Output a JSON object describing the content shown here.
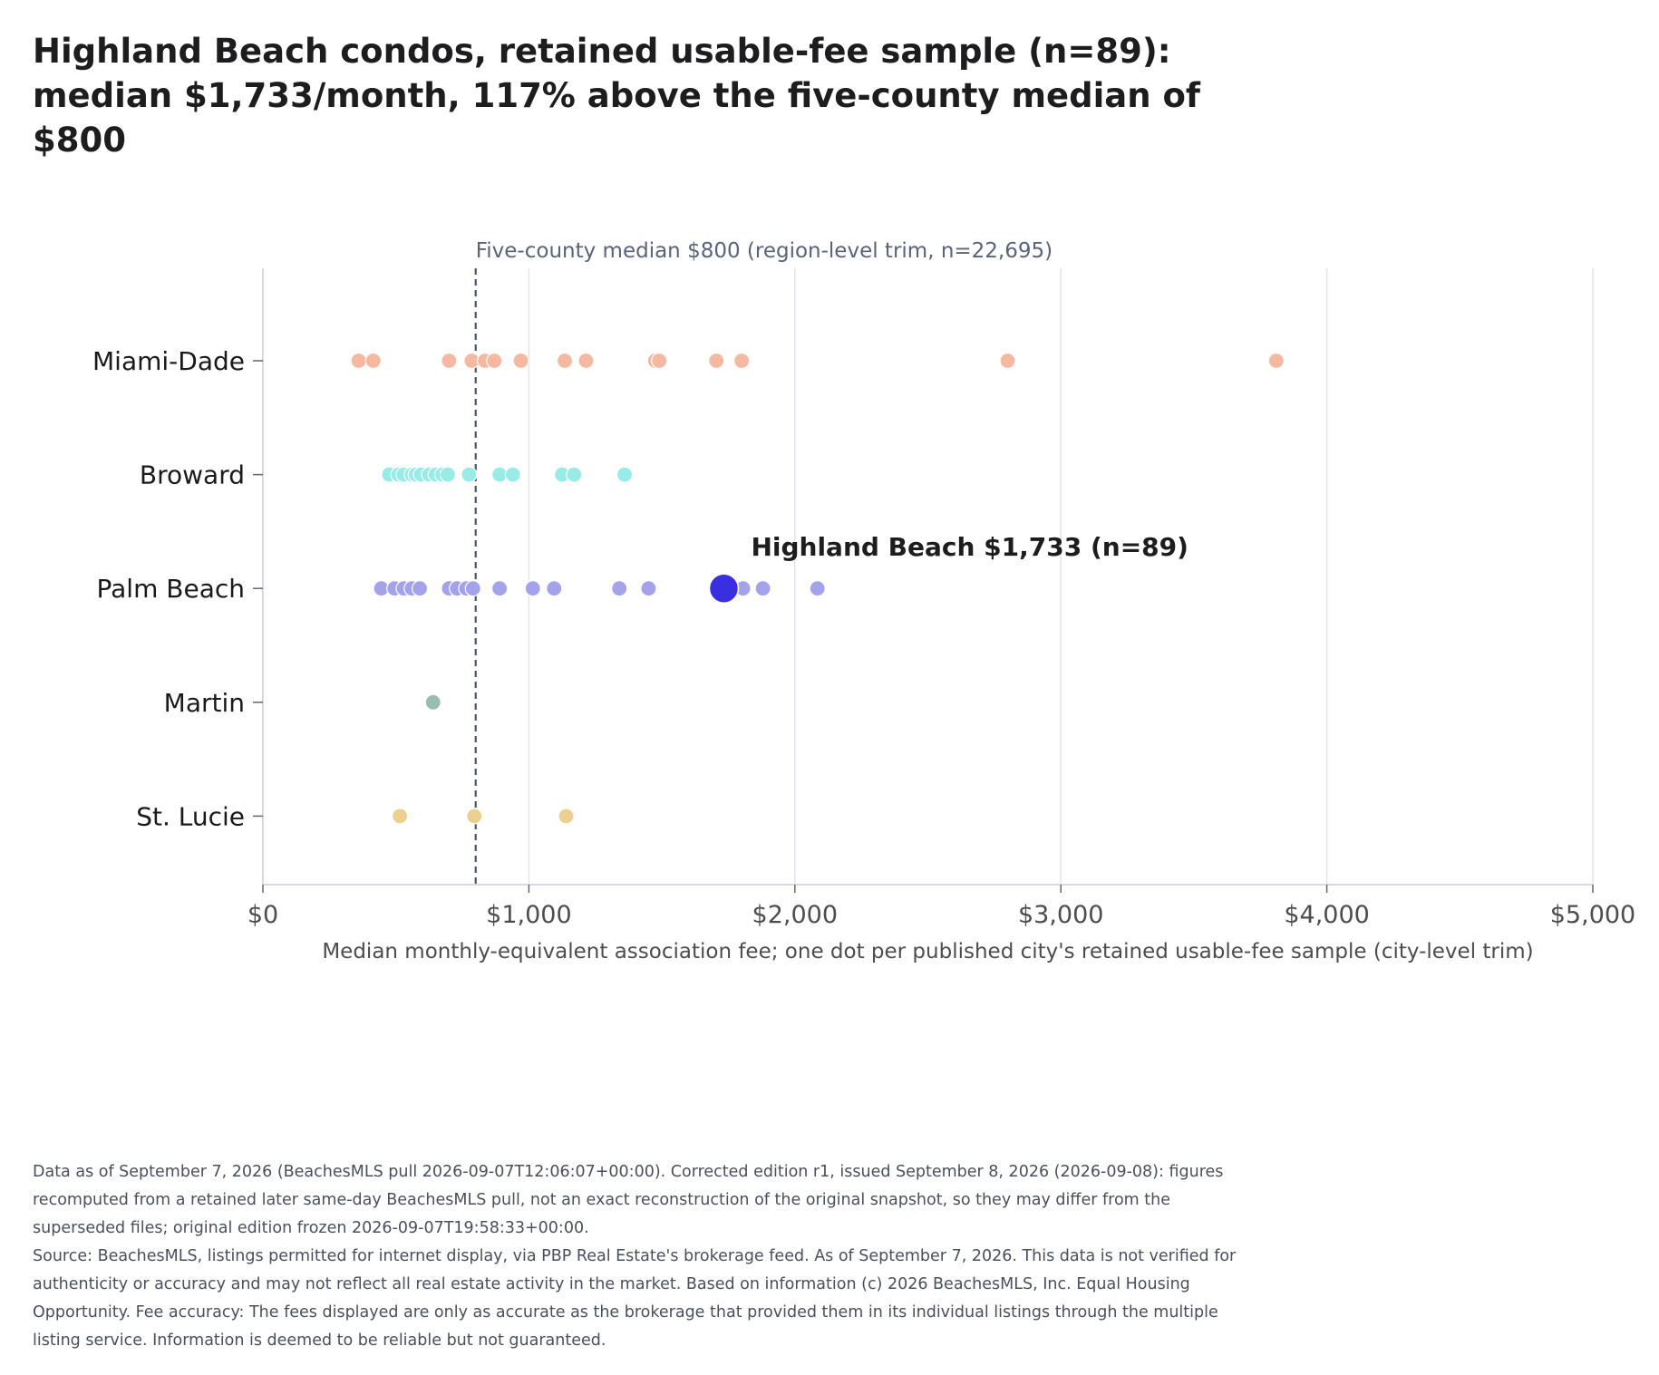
{
  "title": "Highland Beach condos, retained usable-fee sample (n=89): median $1,733/month, 117% above the five-county median of $800",
  "footer": {
    "line1": "Data as of September 7, 2026 (BeachesMLS pull 2026-09-07T12:06:07+00:00). Corrected edition r1, issued September 8, 2026 (2026-09-08): figures recomputed from a retained later same-day BeachesMLS pull, not an exact reconstruction of the original snapshot, so they may differ from the superseded files; original edition frozen 2026-09-07T19:58:33+00:00.",
    "line2": "Source: BeachesMLS, listings permitted for internet display, via PBP Real Estate's brokerage feed. As of September 7, 2026. This data is not verified for authenticity or accuracy and may not reflect all real estate activity in the market. Based on information (c) 2026 BeachesMLS, Inc. Equal Housing Opportunity. Fee accuracy: The fees displayed are only as accurate as the brokerage that provided them in its individual listings through the multiple listing service. Information is deemed to be reliable but not guaranteed."
  },
  "chart_data": {
    "type": "scatter",
    "xlabel": "Median monthly-equivalent association fee; one dot per published city's retained usable-fee sample (city-level trim)",
    "xlim": [
      0,
      5000
    ],
    "xticks": [
      0,
      1000,
      2000,
      3000,
      4000,
      5000
    ],
    "xtick_labels": [
      "$0",
      "$1,000",
      "$2,000",
      "$3,000",
      "$4,000",
      "$5,000"
    ],
    "grid": true,
    "categories": [
      "Miami-Dade",
      "Broward",
      "Palm Beach",
      "Martin",
      "St. Lucie"
    ],
    "series": [
      {
        "name": "Miami-Dade",
        "color": "#f4b9a0",
        "values": [
          360,
          415,
          700,
          785,
          835,
          870,
          970,
          1135,
          1215,
          1475,
          1490,
          1705,
          1800,
          2800,
          3810
        ]
      },
      {
        "name": "Broward",
        "color": "#98ebe6",
        "values": [
          475,
          510,
          530,
          560,
          575,
          595,
          625,
          650,
          675,
          695,
          775,
          890,
          940,
          1125,
          1170,
          1360
        ]
      },
      {
        "name": "Palm Beach",
        "color": "#a5a2ec",
        "values": [
          445,
          495,
          530,
          560,
          590,
          700,
          730,
          765,
          790,
          890,
          1015,
          1095,
          1340,
          1450,
          1805,
          1880,
          2085
        ]
      },
      {
        "name": "Martin",
        "color": "#98bfae",
        "values": [
          640
        ]
      },
      {
        "name": "St. Lucie",
        "color": "#ecd08f",
        "values": [
          515,
          795,
          1140
        ]
      }
    ],
    "highlight": {
      "category": "Palm Beach",
      "value": 1733,
      "label": "Highland Beach $1,733 (n=89)",
      "color": "#3a2fe0"
    },
    "reference_line": {
      "value": 800,
      "label": "Five-county median $800 (region-level trim, n=22,695)",
      "color": "#4a5568"
    }
  }
}
